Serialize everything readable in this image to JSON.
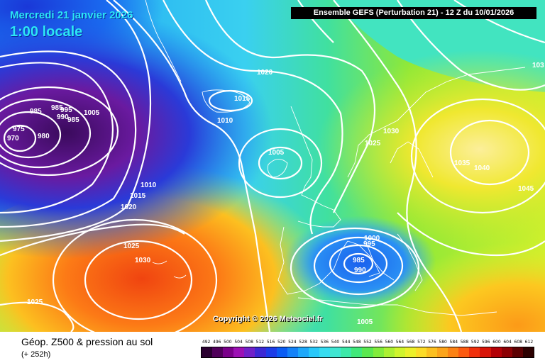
{
  "header": {
    "date": "Mercredi 21 janvier 2026",
    "local_time": "1:00 locale",
    "run": "Ensemble GEFS  (Perturbation 21)  -  12 Z du 10/01/2026"
  },
  "copyright": "Copyright © 2026 Meteociel.fr",
  "legend": {
    "title": "Géop. Z500 & pression au sol",
    "subtitle": "(+ 252h)",
    "scale_values": [
      "492",
      "496",
      "500",
      "504",
      "508",
      "512",
      "516",
      "520",
      "524",
      "528",
      "532",
      "536",
      "540",
      "544",
      "548",
      "552",
      "556",
      "560",
      "564",
      "568",
      "572",
      "576",
      "580",
      "584",
      "588",
      "592",
      "596",
      "600",
      "604",
      "608",
      "612"
    ],
    "scale_colors": [
      "#2a0030",
      "#50005a",
      "#7a008a",
      "#9c10b4",
      "#7020c8",
      "#3c28d4",
      "#1c3ce8",
      "#0a5cf4",
      "#1482f8",
      "#1ea8fa",
      "#28c8fa",
      "#36dcf0",
      "#40e6d2",
      "#3ce8a8",
      "#40e87a",
      "#5ae850",
      "#82ec3c",
      "#acf032",
      "#d0f42c",
      "#ecf02a",
      "#fcdc28",
      "#fcc020",
      "#fca41a",
      "#fc8214",
      "#fc5a10",
      "#f0300c",
      "#d81408",
      "#b40006",
      "#8c0004",
      "#5c0002",
      "#2c0000"
    ]
  },
  "pressure_labels": [
    {
      "text": "970"
    },
    {
      "text": "975"
    },
    {
      "text": "980"
    },
    {
      "text": "985"
    },
    {
      "text": "985"
    },
    {
      "text": "995"
    },
    {
      "text": "990"
    },
    {
      "text": "985"
    },
    {
      "text": "1005"
    },
    {
      "text": "1010"
    },
    {
      "text": "1015"
    },
    {
      "text": "1020"
    },
    {
      "text": "1025"
    },
    {
      "text": "1030"
    },
    {
      "text": "1025"
    },
    {
      "text": "1015"
    },
    {
      "text": "1010"
    },
    {
      "text": "1020"
    },
    {
      "text": "1005"
    },
    {
      "text": "1030"
    },
    {
      "text": "1025"
    },
    {
      "text": "1035"
    },
    {
      "text": "1040"
    },
    {
      "text": "1045"
    },
    {
      "text": "103"
    },
    {
      "text": "1000"
    },
    {
      "text": "995"
    },
    {
      "text": "985"
    },
    {
      "text": "990"
    },
    {
      "text": "1005"
    }
  ]
}
